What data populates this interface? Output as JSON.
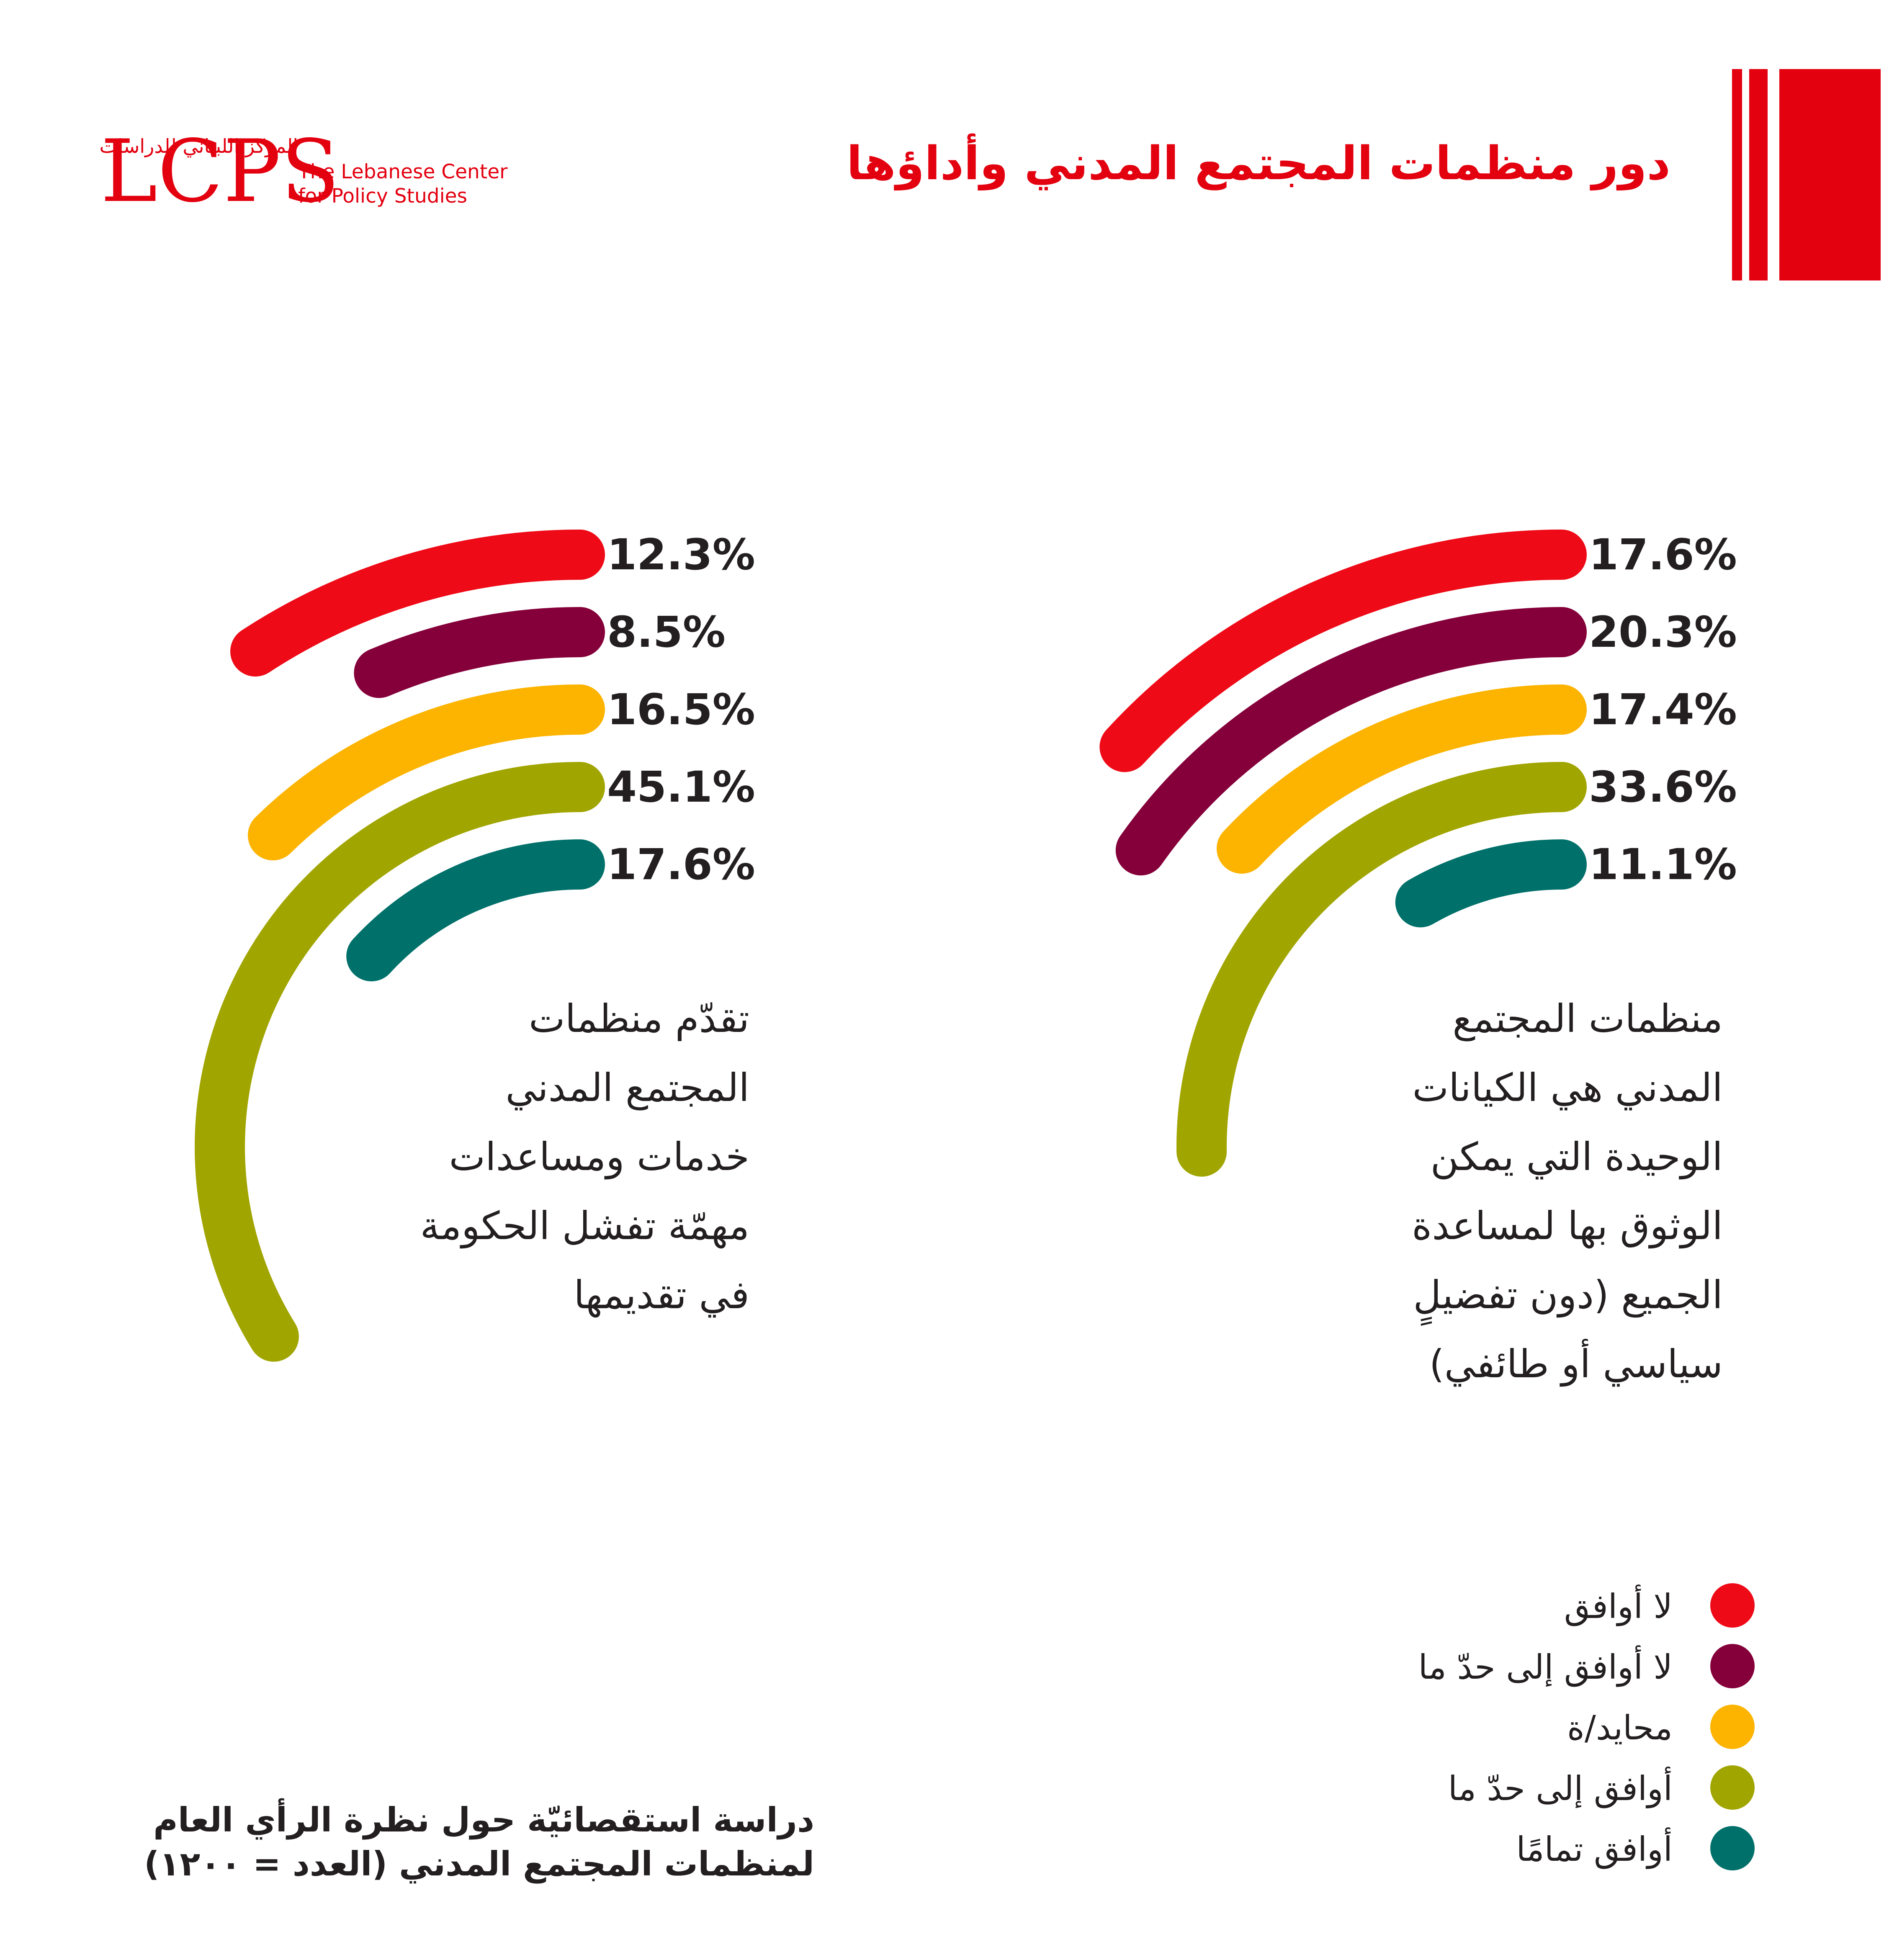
{
  "header": {
    "logo": "LCPS",
    "org_ar": "المركز اللبناني للدراسات",
    "org_en_1": "The Lebanese Center",
    "org_en_2": "for Policy Studies",
    "title": "دور منظمات المجتمع المدني وأداؤها"
  },
  "colors": {
    "brand_red": "#E3000F",
    "disagree": "#EE0A17",
    "somewhat_disagree": "#85003A",
    "neutral": "#FCB400",
    "somewhat_agree": "#A1A500",
    "strongly_agree": "#00706A",
    "text": "#231F20"
  },
  "legend": [
    {
      "label": "لا أوافق",
      "color": "#EE0A17"
    },
    {
      "label": "لا أوافق إلى حدّ ما",
      "color": "#85003A"
    },
    {
      "label": "محايد/ة",
      "color": "#FCB400"
    },
    {
      "label": "أوافق إلى حدّ ما",
      "color": "#A1A500"
    },
    {
      "label": "أوافق تمامًا",
      "color": "#00706A"
    }
  ],
  "chart_data": [
    {
      "type": "radial-bar",
      "question": [
        "منظمات المجتمع",
        "المدني هي الكيانات",
        "الوحيدة التي يمكن",
        "الوثوق بها لمساعدة",
        "الجميع (دون تفضيلٍ",
        "سياسي أو طائفي)"
      ],
      "categories": [
        "لا أوافق",
        "لا أوافق إلى حدّ ما",
        "محايد/ة",
        "أوافق إلى حدّ ما",
        "أوافق تمامًا"
      ],
      "values": [
        17.6,
        20.3,
        17.4,
        33.6,
        11.1
      ],
      "labels": [
        "17.6%",
        "20.3%",
        "17.4%",
        "33.6%",
        "11.1%"
      ]
    },
    {
      "type": "radial-bar",
      "question": [
        "تقدّم منظمات",
        "المجتمع المدني",
        "خدمات ومساعدات",
        "مهمّة تفشل الحكومة",
        "في تقديمها"
      ],
      "categories": [
        "لا أوافق",
        "لا أوافق إلى حدّ ما",
        "محايد/ة",
        "أوافق إلى حدّ ما",
        "أوافق تمامًا"
      ],
      "values": [
        12.3,
        8.5,
        16.5,
        45.1,
        17.6
      ],
      "labels": [
        "12.3%",
        "8.5%",
        "16.5%",
        "45.1%",
        "17.6%"
      ]
    }
  ],
  "footer": {
    "line1": "دراسة استقصائيّة حول نظرة الرأي العام",
    "line2": "لمنظمات المجتمع المدني (العدد = ١٢٠٠)"
  }
}
